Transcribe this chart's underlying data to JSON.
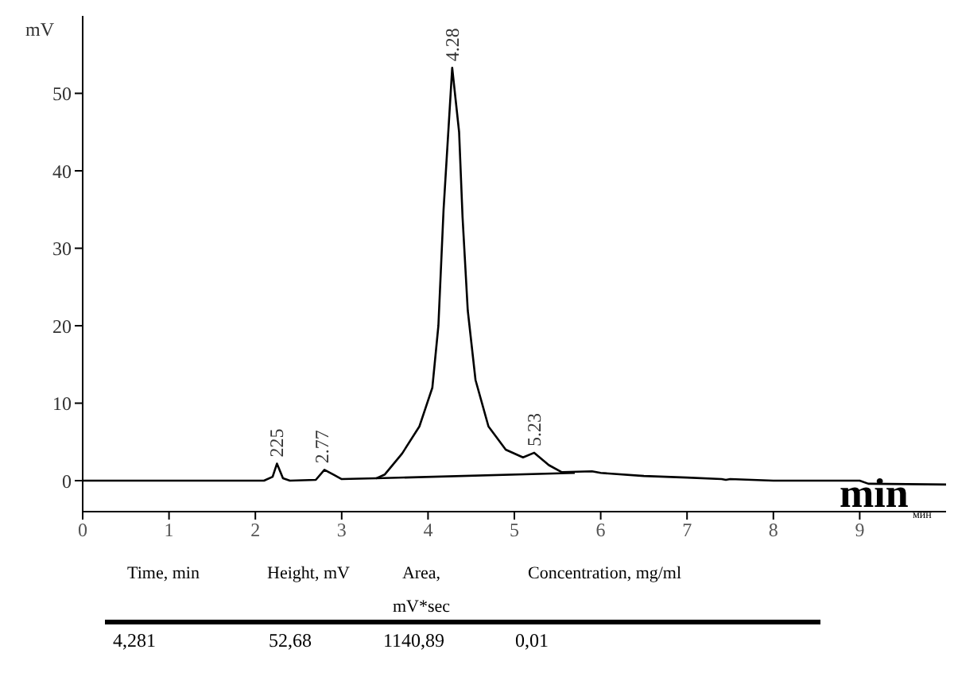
{
  "chart_data": {
    "type": "line",
    "xlabel": "min",
    "ylabel": "mV",
    "xlim": [
      0,
      10
    ],
    "ylim": [
      -4,
      60
    ],
    "xticks": [
      0,
      1,
      2,
      3,
      4,
      5,
      6,
      7,
      8,
      9
    ],
    "yticks": [
      0,
      10,
      20,
      30,
      40,
      50
    ],
    "marker": "none",
    "line_style": "solid",
    "series": [
      {
        "color": "#000000",
        "x": [
          0,
          2.1,
          2.2,
          2.25,
          2.32,
          2.4,
          2.7,
          2.8,
          2.9,
          3.0,
          3.4,
          3.5,
          3.7,
          3.9,
          4.05,
          4.12,
          4.18,
          4.28,
          4.36,
          4.4,
          4.46,
          4.55,
          4.7,
          4.9,
          5.1,
          5.23,
          5.4,
          5.55,
          5.9,
          6.0,
          6.5,
          7.0,
          7.4,
          7.45,
          7.5,
          8.0,
          9.0,
          9.1,
          10
        ],
        "values": [
          0,
          0,
          0.5,
          2.2,
          0.3,
          0,
          0.1,
          1.4,
          0.8,
          0.2,
          0.3,
          0.8,
          3.5,
          7,
          12,
          20,
          35,
          53.3,
          45,
          34,
          22,
          13,
          7,
          4,
          3.0,
          3.6,
          2,
          1.1,
          1.2,
          1.0,
          0.6,
          0.4,
          0.2,
          0.1,
          0.2,
          0,
          0,
          -0.4,
          -0.5
        ]
      },
      {
        "color": "#000000",
        "x": [
          3.4,
          5.7
        ],
        "values": [
          0.3,
          1.0
        ]
      }
    ],
    "annotations": [
      {
        "text": "225",
        "x": 2.25,
        "y": 2.2
      },
      {
        "text": "2.77",
        "x": 2.77,
        "y": 1.4
      },
      {
        "text": "4.28",
        "x": 4.28,
        "y": 53.3
      },
      {
        "text": "5.23",
        "x": 5.23,
        "y": 3.6
      },
      "мин",
      "Time, min",
      "Height, mV",
      "Area, mV*sec",
      "Concentration, mg/ml",
      "4,281",
      "52,68",
      "1140,89",
      "0,01"
    ]
  }
}
